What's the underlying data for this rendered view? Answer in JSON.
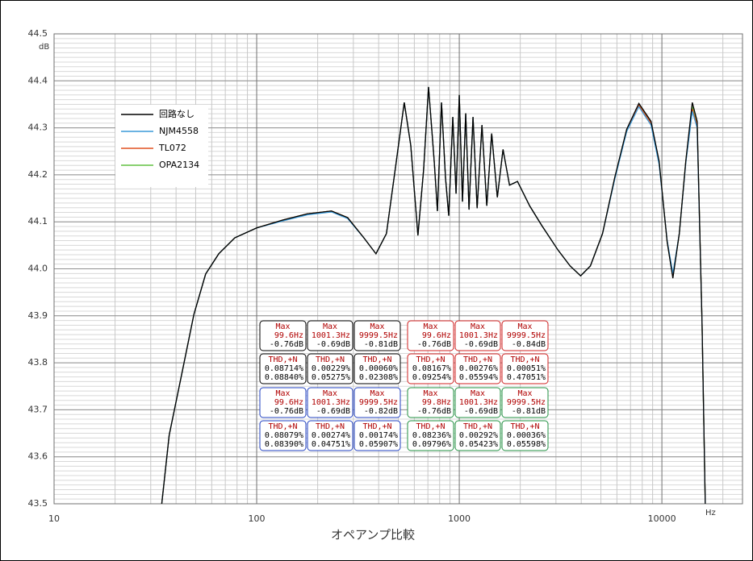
{
  "chart_data": {
    "type": "line",
    "title": "オペアンプ比較",
    "x_unit": "Hz",
    "y_unit": "dB",
    "xscale": "log",
    "xlim": [
      10,
      25000
    ],
    "xticks": [
      10,
      100,
      1000,
      10000
    ],
    "ylim": [
      43.5,
      44.5
    ],
    "yticks": [
      43.5,
      43.6,
      43.7,
      43.8,
      43.9,
      {
        "value": 44,
        "label": "44.0"
      },
      44.1,
      44.2,
      44.3,
      44.4,
      44.5
    ],
    "grid": true,
    "minor_grid": true,
    "legend": "upper-left",
    "x": [
      34,
      37,
      43,
      49,
      56,
      65,
      78,
      100,
      135,
      178,
      234,
      281,
      338,
      388,
      437,
      489,
      535,
      576,
      625,
      667,
      705,
      752,
      780,
      817,
      855,
      887,
      929,
      964,
      1000,
      1037,
      1076,
      1117,
      1169,
      1225,
      1294,
      1367,
      1445,
      1541,
      1644,
      1770,
      1938,
      2225,
      2555,
      3070,
      3525,
      3972,
      4436,
      5094,
      5849,
      6703,
      7697,
      8836,
      9691,
      10620,
      11330,
      12190,
      13120,
      14130,
      14930,
      15780,
      16370
    ],
    "series": [
      {
        "name": "回路なし",
        "color": "#000000",
        "values": [
          43.5,
          43.646,
          43.783,
          43.903,
          43.989,
          44.032,
          44.066,
          44.087,
          44.104,
          44.117,
          44.123,
          44.109,
          44.066,
          44.032,
          44.075,
          44.229,
          44.354,
          44.263,
          44.071,
          44.212,
          44.387,
          44.229,
          44.123,
          44.354,
          44.194,
          44.113,
          44.323,
          44.16,
          44.37,
          44.143,
          44.331,
          44.126,
          44.323,
          44.129,
          44.306,
          44.134,
          44.288,
          44.152,
          44.254,
          44.178,
          44.186,
          44.134,
          44.092,
          44.04,
          44.006,
          43.985,
          44.006,
          44.075,
          44.194,
          44.297,
          44.352,
          44.314,
          44.229,
          44.057,
          43.98,
          44.075,
          44.229,
          44.354,
          44.314,
          43.886,
          43.5
        ]
      },
      {
        "name": "NJM4558",
        "color": "#3a9ad9",
        "values": [
          43.5,
          43.646,
          43.783,
          43.903,
          43.989,
          44.032,
          44.066,
          44.087,
          44.102,
          44.115,
          44.121,
          44.107,
          44.066,
          44.032,
          44.075,
          44.229,
          44.354,
          44.263,
          44.071,
          44.212,
          44.387,
          44.229,
          44.123,
          44.354,
          44.194,
          44.113,
          44.323,
          44.16,
          44.37,
          44.143,
          44.331,
          44.126,
          44.323,
          44.129,
          44.306,
          44.134,
          44.288,
          44.152,
          44.254,
          44.178,
          44.186,
          44.134,
          44.092,
          44.04,
          44.006,
          43.985,
          44.006,
          44.075,
          44.19,
          44.292,
          44.345,
          44.306,
          44.222,
          44.06,
          43.99,
          44.075,
          44.225,
          44.335,
          44.3,
          43.886,
          43.5
        ]
      },
      {
        "name": "TL072",
        "color": "#e05020",
        "values": [
          43.5,
          43.646,
          43.783,
          43.903,
          43.989,
          44.032,
          44.066,
          44.087,
          44.104,
          44.117,
          44.123,
          44.109,
          44.066,
          44.032,
          44.075,
          44.229,
          44.354,
          44.263,
          44.071,
          44.212,
          44.387,
          44.229,
          44.123,
          44.354,
          44.194,
          44.113,
          44.323,
          44.16,
          44.37,
          44.143,
          44.331,
          44.126,
          44.323,
          44.129,
          44.306,
          44.134,
          44.288,
          44.152,
          44.254,
          44.178,
          44.186,
          44.134,
          44.092,
          44.04,
          44.006,
          43.985,
          44.006,
          44.075,
          44.192,
          44.295,
          44.348,
          44.31,
          44.225,
          44.058,
          43.985,
          44.075,
          44.227,
          44.34,
          44.305,
          43.886,
          43.5
        ]
      },
      {
        "name": "OPA2134",
        "color": "#60c040",
        "values": [
          43.5,
          43.646,
          43.783,
          43.903,
          43.989,
          44.032,
          44.066,
          44.087,
          44.104,
          44.117,
          44.123,
          44.109,
          44.066,
          44.032,
          44.075,
          44.229,
          44.354,
          44.263,
          44.071,
          44.212,
          44.387,
          44.229,
          44.123,
          44.354,
          44.194,
          44.113,
          44.323,
          44.16,
          44.37,
          44.143,
          44.331,
          44.126,
          44.323,
          44.129,
          44.306,
          44.134,
          44.288,
          44.152,
          44.254,
          44.178,
          44.186,
          44.134,
          44.092,
          44.04,
          44.006,
          43.985,
          44.006,
          44.075,
          44.193,
          44.296,
          44.35,
          44.312,
          44.227,
          44.057,
          43.983,
          44.075,
          44.228,
          44.345,
          44.308,
          43.886,
          43.5
        ]
      }
    ],
    "annotations": [
      {
        "color": "#000000",
        "max": [
          [
            "Max",
            "99.6Hz",
            "-0.76dB"
          ],
          [
            "Max",
            "1001.3Hz",
            "-0.69dB"
          ],
          [
            "Max",
            "9999.5Hz",
            "-0.81dB"
          ]
        ],
        "thd": [
          [
            "THD,+N",
            "0.08714%",
            "0.08840%"
          ],
          [
            "THD,+N",
            "0.00229%",
            "0.05275%"
          ],
          [
            "THD,+N",
            "0.00060%",
            "0.02308%"
          ]
        ]
      },
      {
        "color": "#d02020",
        "max": [
          [
            "Max",
            "99.6Hz",
            "-0.76dB"
          ],
          [
            "Max",
            "1001.3Hz",
            "-0.69dB"
          ],
          [
            "Max",
            "9999.5Hz",
            "-0.84dB"
          ]
        ],
        "thd": [
          [
            "THD,+N",
            "0.08167%",
            "0.09254%"
          ],
          [
            "THD,+N",
            "0.00276%",
            "0.05594%"
          ],
          [
            "THD,+N",
            "0.00051%",
            "0.47051%"
          ]
        ]
      },
      {
        "color": "#2040c0",
        "max": [
          [
            "Max",
            "99.6Hz",
            "-0.76dB"
          ],
          [
            "Max",
            "1001.3Hz",
            "-0.69dB"
          ],
          [
            "Max",
            "9999.5Hz",
            "-0.82dB"
          ]
        ],
        "thd": [
          [
            "THD,+N",
            "0.08079%",
            "0.08390%"
          ],
          [
            "THD,+N",
            "0.00274%",
            "0.04751%"
          ],
          [
            "THD,+N",
            "0.00174%",
            "0.05907%"
          ]
        ]
      },
      {
        "color": "#209040",
        "max": [
          [
            "Max",
            "99.8Hz",
            "-0.76dB"
          ],
          [
            "Max",
            "1001.3Hz",
            "-0.69dB"
          ],
          [
            "Max",
            "9999.5Hz",
            "-0.81dB"
          ]
        ],
        "thd": [
          [
            "THD,+N",
            "0.08236%",
            "0.09796%"
          ],
          [
            "THD,+N",
            "0.00292%",
            "0.05423%"
          ],
          [
            "THD,+N",
            "0.00036%",
            "0.05598%"
          ]
        ]
      }
    ]
  }
}
